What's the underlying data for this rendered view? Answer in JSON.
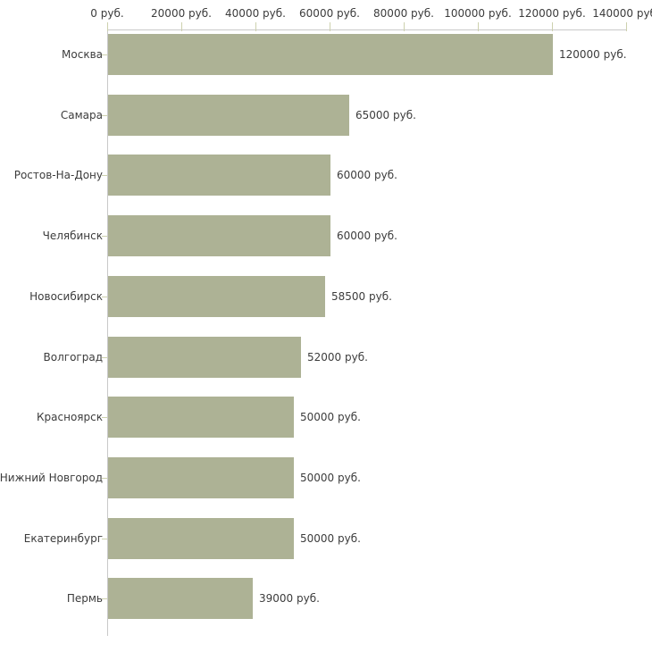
{
  "chart_data": {
    "type": "bar",
    "orientation": "horizontal",
    "title": "",
    "xlabel": "",
    "ylabel": "",
    "unit": "руб.",
    "categories": [
      "Москва",
      "Самара",
      "Ростов-На-Дону",
      "Челябинск",
      "Новосибирск",
      "Волгоград",
      "Красноярск",
      "Нижний Новгород",
      "Екатеринбург",
      "Пермь"
    ],
    "values": [
      120000,
      65000,
      60000,
      60000,
      58500,
      52000,
      50000,
      50000,
      50000,
      39000
    ],
    "value_labels": [
      "120000 руб.",
      "65000 руб.",
      "60000 руб.",
      "60000 руб.",
      "58500 руб.",
      "52000 руб.",
      "50000 руб.",
      "50000 руб.",
      "50000 руб.",
      "39000 руб."
    ],
    "x_tick_values": [
      0,
      20000,
      40000,
      60000,
      80000,
      100000,
      120000,
      140000
    ],
    "x_tick_labels": [
      "0 руб.",
      "20000 руб.",
      "40000 руб.",
      "60000 руб.",
      "80000 руб.",
      "100000 руб.",
      "120000 руб.",
      "140000 руб."
    ],
    "xlim": [
      0,
      140000
    ],
    "grid": false,
    "legend": null,
    "colors": {
      "bar_fill": "#adb295",
      "axis_line": "#c9c9c9",
      "axis_tick": "#cdd1ae",
      "text": "#3c3c3c",
      "background": "#ffffff"
    }
  }
}
